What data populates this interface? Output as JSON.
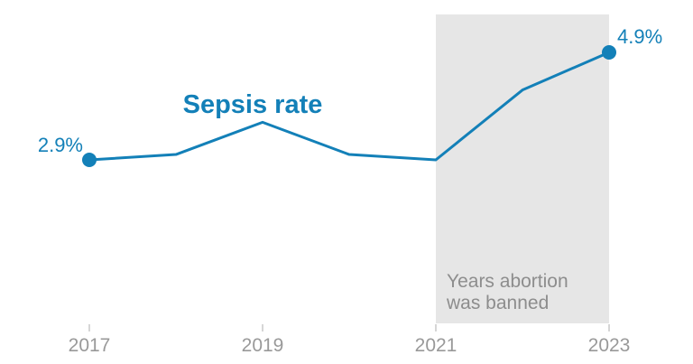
{
  "chart_data": {
    "type": "line",
    "title": "Sepsis rate",
    "xlabel": "",
    "ylabel": "",
    "x": [
      2017,
      2018,
      2019,
      2020,
      2021,
      2022,
      2023
    ],
    "series": [
      {
        "name": "Sepsis rate",
        "values": [
          2.9,
          3.0,
          3.6,
          3.0,
          2.9,
          4.2,
          4.9
        ]
      }
    ],
    "x_ticks": [
      "2017",
      "2019",
      "2021",
      "2023"
    ],
    "x_tick_years": [
      2017,
      2019,
      2021,
      2023
    ],
    "ylim": [
      2.6,
      5.2
    ],
    "grid": false,
    "legend_position": "none",
    "point_labels": [
      {
        "year": 2017,
        "value": 2.9,
        "text": "2.9%"
      },
      {
        "year": 2023,
        "value": 4.9,
        "text": "4.9%"
      }
    ],
    "annotation_band": {
      "from": 2021,
      "to": 2023,
      "label_line1": "Years abortion",
      "label_line2": "was banned"
    }
  },
  "colors": {
    "accent_blue": "#1380b8",
    "band_gray": "#e6e6e6",
    "axis_label_gray": "#999999",
    "tick_gray": "#c9c9c9",
    "band_text_gray": "#8d8d8d",
    "background": "#ffffff"
  }
}
